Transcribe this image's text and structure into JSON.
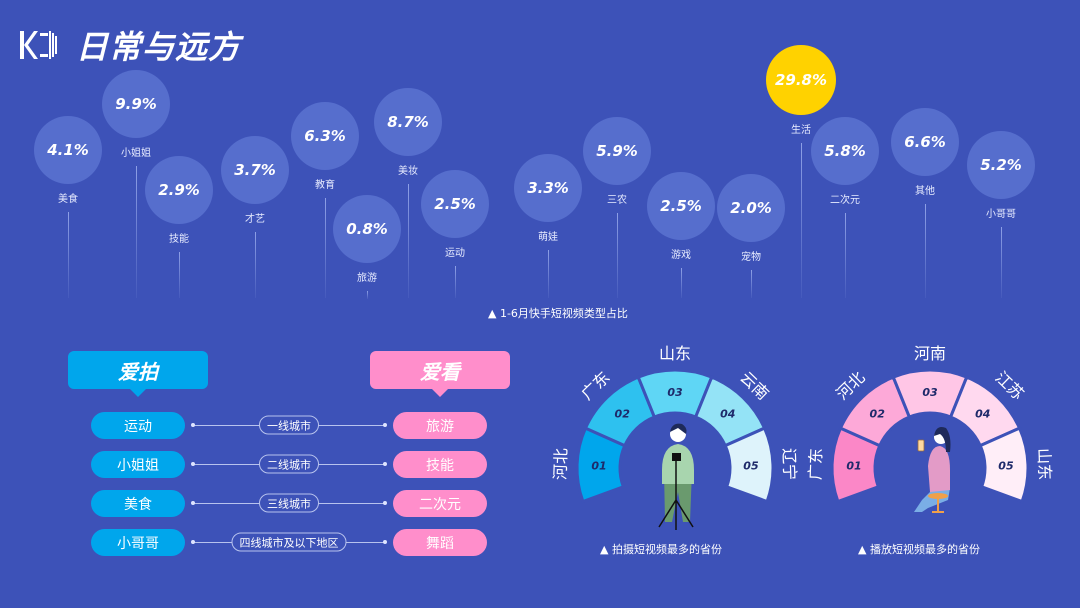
{
  "header": {
    "title": "日常与远方",
    "logo_icon": "kuaishou-logo"
  },
  "bubbles": {
    "caption": "1-6月快手短视频类型占比",
    "highlight_color": "#ffd200",
    "bubble_color": "#566ecd",
    "items": [
      {
        "label": "美食",
        "value": "4.1%"
      },
      {
        "label": "小姐姐",
        "value": "9.9%"
      },
      {
        "label": "技能",
        "value": "2.9%"
      },
      {
        "label": "才艺",
        "value": "3.7%"
      },
      {
        "label": "教育",
        "value": "6.3%"
      },
      {
        "label": "旅游",
        "value": "0.8%"
      },
      {
        "label": "美妆",
        "value": "8.7%"
      },
      {
        "label": "运动",
        "value": "2.5%"
      },
      {
        "label": "萌娃",
        "value": "3.3%"
      },
      {
        "label": "三农",
        "value": "5.9%"
      },
      {
        "label": "游戏",
        "value": "2.5%"
      },
      {
        "label": "宠物",
        "value": "2.0%"
      },
      {
        "label": "生活",
        "value": "29.8%",
        "highlight": true
      },
      {
        "label": "二次元",
        "value": "5.8%"
      },
      {
        "label": "其他",
        "value": "6.6%"
      },
      {
        "label": "小哥哥",
        "value": "5.2%"
      }
    ]
  },
  "compare": {
    "shoot_title": "爱拍",
    "watch_title": "爱看",
    "shoot_color": "#00a6ec",
    "watch_color": "#ff8ecb",
    "rows": [
      {
        "shoot": "运动",
        "tier": "一线城市",
        "watch": "旅游"
      },
      {
        "shoot": "小姐姐",
        "tier": "二线城市",
        "watch": "技能"
      },
      {
        "shoot": "美食",
        "tier": "三线城市",
        "watch": "二次元"
      },
      {
        "shoot": "小哥哥",
        "tier": "四线城市及以下地区",
        "watch": "舞蹈"
      }
    ]
  },
  "fans": [
    {
      "caption": "拍摄短视频最多的省份",
      "figure": "person-filming-icon",
      "segments": [
        {
          "rank": "01",
          "province": "河北",
          "color": "#00a6ec"
        },
        {
          "rank": "02",
          "province": "广东",
          "color": "#2ec1ef"
        },
        {
          "rank": "03",
          "province": "山东",
          "color": "#5fd6f5"
        },
        {
          "rank": "04",
          "province": "云南",
          "color": "#94e3f6"
        },
        {
          "rank": "05",
          "province": "辽宁",
          "color": "#def3fb"
        }
      ]
    },
    {
      "caption": "播放短视频最多的省份",
      "figure": "person-watching-phone-icon",
      "segments": [
        {
          "rank": "01",
          "province": "广东",
          "color": "#fb87c7"
        },
        {
          "rank": "02",
          "province": "河北",
          "color": "#fda9d8"
        },
        {
          "rank": "03",
          "province": "河南",
          "color": "#ffc6e6"
        },
        {
          "rank": "04",
          "province": "江苏",
          "color": "#ffd9ef"
        },
        {
          "rank": "05",
          "province": "山东",
          "color": "#ffeef8"
        }
      ]
    }
  ]
}
